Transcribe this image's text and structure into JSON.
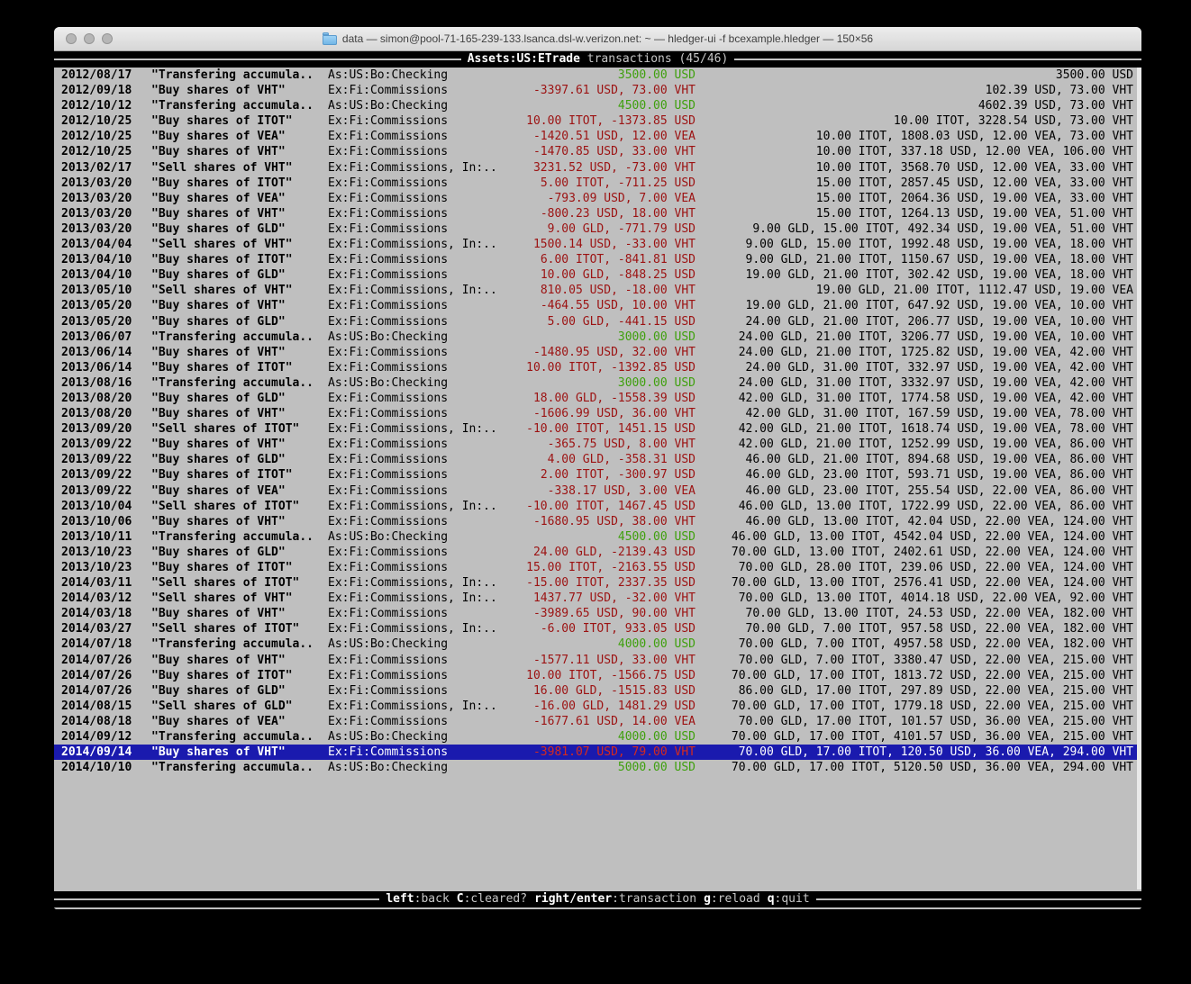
{
  "window": {
    "title": "data — simon@pool-71-165-239-133.lsanca.dsl-w.verizon.net: ~ — hledger-ui -f bcexample.hledger — 150×56"
  },
  "header": {
    "account": "Assets:US:ETrade",
    "rest_label": " transactions (45/46)"
  },
  "footer": {
    "keys": [
      {
        "key": "left",
        "desc": ":back"
      },
      {
        "key": "C",
        "desc": ":cleared?"
      },
      {
        "key": "right/enter",
        "desc": ":transaction"
      },
      {
        "key": "g",
        "desc": ":reload"
      },
      {
        "key": "q",
        "desc": ":quit"
      }
    ]
  },
  "colors": {
    "terminal_bg": "#bfbfbf",
    "bar_bg": "#000000",
    "positive_amount": "#3fa00e",
    "negative_amount": "#9c1212",
    "selection_bg": "#1a1aae",
    "selected_negative_amount": "#d42a1e"
  },
  "transactions": [
    {
      "date": "2012/08/17",
      "description": "\"Transfering accumula..",
      "accounts": "As:US:Bo:Checking",
      "change": "3500.00 USD",
      "positive": true,
      "balance": "3500.00 USD",
      "selected": false
    },
    {
      "date": "2012/09/18",
      "description": "\"Buy shares of VHT\"",
      "accounts": "Ex:Fi:Commissions",
      "change": "-3397.61 USD, 73.00 VHT",
      "positive": false,
      "balance": "102.39 USD, 73.00 VHT",
      "selected": false
    },
    {
      "date": "2012/10/12",
      "description": "\"Transfering accumula..",
      "accounts": "As:US:Bo:Checking",
      "change": "4500.00 USD",
      "positive": true,
      "balance": "4602.39 USD, 73.00 VHT",
      "selected": false
    },
    {
      "date": "2012/10/25",
      "description": "\"Buy shares of ITOT\"",
      "accounts": "Ex:Fi:Commissions",
      "change": "10.00 ITOT, -1373.85 USD",
      "positive": false,
      "balance": "10.00 ITOT, 3228.54 USD, 73.00 VHT",
      "selected": false
    },
    {
      "date": "2012/10/25",
      "description": "\"Buy shares of VEA\"",
      "accounts": "Ex:Fi:Commissions",
      "change": "-1420.51 USD, 12.00 VEA",
      "positive": false,
      "balance": "10.00 ITOT, 1808.03 USD, 12.00 VEA, 73.00 VHT",
      "selected": false
    },
    {
      "date": "2012/10/25",
      "description": "\"Buy shares of VHT\"",
      "accounts": "Ex:Fi:Commissions",
      "change": "-1470.85 USD, 33.00 VHT",
      "positive": false,
      "balance": "10.00 ITOT, 337.18 USD, 12.00 VEA, 106.00 VHT",
      "selected": false
    },
    {
      "date": "2013/02/17",
      "description": "\"Sell shares of VHT\"",
      "accounts": "Ex:Fi:Commissions, In:..",
      "change": "3231.52 USD, -73.00 VHT",
      "positive": false,
      "balance": "10.00 ITOT, 3568.70 USD, 12.00 VEA, 33.00 VHT",
      "selected": false
    },
    {
      "date": "2013/03/20",
      "description": "\"Buy shares of ITOT\"",
      "accounts": "Ex:Fi:Commissions",
      "change": "5.00 ITOT, -711.25 USD",
      "positive": false,
      "balance": "15.00 ITOT, 2857.45 USD, 12.00 VEA, 33.00 VHT",
      "selected": false
    },
    {
      "date": "2013/03/20",
      "description": "\"Buy shares of VEA\"",
      "accounts": "Ex:Fi:Commissions",
      "change": "-793.09 USD, 7.00 VEA",
      "positive": false,
      "balance": "15.00 ITOT, 2064.36 USD, 19.00 VEA, 33.00 VHT",
      "selected": false
    },
    {
      "date": "2013/03/20",
      "description": "\"Buy shares of VHT\"",
      "accounts": "Ex:Fi:Commissions",
      "change": "-800.23 USD, 18.00 VHT",
      "positive": false,
      "balance": "15.00 ITOT, 1264.13 USD, 19.00 VEA, 51.00 VHT",
      "selected": false
    },
    {
      "date": "2013/03/20",
      "description": "\"Buy shares of GLD\"",
      "accounts": "Ex:Fi:Commissions",
      "change": "9.00 GLD, -771.79 USD",
      "positive": false,
      "balance": "9.00 GLD, 15.00 ITOT, 492.34 USD, 19.00 VEA, 51.00 VHT",
      "selected": false
    },
    {
      "date": "2013/04/04",
      "description": "\"Sell shares of VHT\"",
      "accounts": "Ex:Fi:Commissions, In:..",
      "change": "1500.14 USD, -33.00 VHT",
      "positive": false,
      "balance": "9.00 GLD, 15.00 ITOT, 1992.48 USD, 19.00 VEA, 18.00 VHT",
      "selected": false
    },
    {
      "date": "2013/04/10",
      "description": "\"Buy shares of ITOT\"",
      "accounts": "Ex:Fi:Commissions",
      "change": "6.00 ITOT, -841.81 USD",
      "positive": false,
      "balance": "9.00 GLD, 21.00 ITOT, 1150.67 USD, 19.00 VEA, 18.00 VHT",
      "selected": false
    },
    {
      "date": "2013/04/10",
      "description": "\"Buy shares of GLD\"",
      "accounts": "Ex:Fi:Commissions",
      "change": "10.00 GLD, -848.25 USD",
      "positive": false,
      "balance": "19.00 GLD, 21.00 ITOT, 302.42 USD, 19.00 VEA, 18.00 VHT",
      "selected": false
    },
    {
      "date": "2013/05/10",
      "description": "\"Sell shares of VHT\"",
      "accounts": "Ex:Fi:Commissions, In:..",
      "change": "810.05 USD, -18.00 VHT",
      "positive": false,
      "balance": "19.00 GLD, 21.00 ITOT, 1112.47 USD, 19.00 VEA",
      "selected": false
    },
    {
      "date": "2013/05/20",
      "description": "\"Buy shares of VHT\"",
      "accounts": "Ex:Fi:Commissions",
      "change": "-464.55 USD, 10.00 VHT",
      "positive": false,
      "balance": "19.00 GLD, 21.00 ITOT, 647.92 USD, 19.00 VEA, 10.00 VHT",
      "selected": false
    },
    {
      "date": "2013/05/20",
      "description": "\"Buy shares of GLD\"",
      "accounts": "Ex:Fi:Commissions",
      "change": "5.00 GLD, -441.15 USD",
      "positive": false,
      "balance": "24.00 GLD, 21.00 ITOT, 206.77 USD, 19.00 VEA, 10.00 VHT",
      "selected": false
    },
    {
      "date": "2013/06/07",
      "description": "\"Transfering accumula..",
      "accounts": "As:US:Bo:Checking",
      "change": "3000.00 USD",
      "positive": true,
      "balance": "24.00 GLD, 21.00 ITOT, 3206.77 USD, 19.00 VEA, 10.00 VHT",
      "selected": false
    },
    {
      "date": "2013/06/14",
      "description": "\"Buy shares of VHT\"",
      "accounts": "Ex:Fi:Commissions",
      "change": "-1480.95 USD, 32.00 VHT",
      "positive": false,
      "balance": "24.00 GLD, 21.00 ITOT, 1725.82 USD, 19.00 VEA, 42.00 VHT",
      "selected": false
    },
    {
      "date": "2013/06/14",
      "description": "\"Buy shares of ITOT\"",
      "accounts": "Ex:Fi:Commissions",
      "change": "10.00 ITOT, -1392.85 USD",
      "positive": false,
      "balance": "24.00 GLD, 31.00 ITOT, 332.97 USD, 19.00 VEA, 42.00 VHT",
      "selected": false
    },
    {
      "date": "2013/08/16",
      "description": "\"Transfering accumula..",
      "accounts": "As:US:Bo:Checking",
      "change": "3000.00 USD",
      "positive": true,
      "balance": "24.00 GLD, 31.00 ITOT, 3332.97 USD, 19.00 VEA, 42.00 VHT",
      "selected": false
    },
    {
      "date": "2013/08/20",
      "description": "\"Buy shares of GLD\"",
      "accounts": "Ex:Fi:Commissions",
      "change": "18.00 GLD, -1558.39 USD",
      "positive": false,
      "balance": "42.00 GLD, 31.00 ITOT, 1774.58 USD, 19.00 VEA, 42.00 VHT",
      "selected": false
    },
    {
      "date": "2013/08/20",
      "description": "\"Buy shares of VHT\"",
      "accounts": "Ex:Fi:Commissions",
      "change": "-1606.99 USD, 36.00 VHT",
      "positive": false,
      "balance": "42.00 GLD, 31.00 ITOT, 167.59 USD, 19.00 VEA, 78.00 VHT",
      "selected": false
    },
    {
      "date": "2013/09/20",
      "description": "\"Sell shares of ITOT\"",
      "accounts": "Ex:Fi:Commissions, In:..",
      "change": "-10.00 ITOT, 1451.15 USD",
      "positive": false,
      "balance": "42.00 GLD, 21.00 ITOT, 1618.74 USD, 19.00 VEA, 78.00 VHT",
      "selected": false
    },
    {
      "date": "2013/09/22",
      "description": "\"Buy shares of VHT\"",
      "accounts": "Ex:Fi:Commissions",
      "change": "-365.75 USD, 8.00 VHT",
      "positive": false,
      "balance": "42.00 GLD, 21.00 ITOT, 1252.99 USD, 19.00 VEA, 86.00 VHT",
      "selected": false
    },
    {
      "date": "2013/09/22",
      "description": "\"Buy shares of GLD\"",
      "accounts": "Ex:Fi:Commissions",
      "change": "4.00 GLD, -358.31 USD",
      "positive": false,
      "balance": "46.00 GLD, 21.00 ITOT, 894.68 USD, 19.00 VEA, 86.00 VHT",
      "selected": false
    },
    {
      "date": "2013/09/22",
      "description": "\"Buy shares of ITOT\"",
      "accounts": "Ex:Fi:Commissions",
      "change": "2.00 ITOT, -300.97 USD",
      "positive": false,
      "balance": "46.00 GLD, 23.00 ITOT, 593.71 USD, 19.00 VEA, 86.00 VHT",
      "selected": false
    },
    {
      "date": "2013/09/22",
      "description": "\"Buy shares of VEA\"",
      "accounts": "Ex:Fi:Commissions",
      "change": "-338.17 USD, 3.00 VEA",
      "positive": false,
      "balance": "46.00 GLD, 23.00 ITOT, 255.54 USD, 22.00 VEA, 86.00 VHT",
      "selected": false
    },
    {
      "date": "2013/10/04",
      "description": "\"Sell shares of ITOT\"",
      "accounts": "Ex:Fi:Commissions, In:..",
      "change": "-10.00 ITOT, 1467.45 USD",
      "positive": false,
      "balance": "46.00 GLD, 13.00 ITOT, 1722.99 USD, 22.00 VEA, 86.00 VHT",
      "selected": false
    },
    {
      "date": "2013/10/06",
      "description": "\"Buy shares of VHT\"",
      "accounts": "Ex:Fi:Commissions",
      "change": "-1680.95 USD, 38.00 VHT",
      "positive": false,
      "balance": "46.00 GLD, 13.00 ITOT, 42.04 USD, 22.00 VEA, 124.00 VHT",
      "selected": false
    },
    {
      "date": "2013/10/11",
      "description": "\"Transfering accumula..",
      "accounts": "As:US:Bo:Checking",
      "change": "4500.00 USD",
      "positive": true,
      "balance": "46.00 GLD, 13.00 ITOT, 4542.04 USD, 22.00 VEA, 124.00 VHT",
      "selected": false
    },
    {
      "date": "2013/10/23",
      "description": "\"Buy shares of GLD\"",
      "accounts": "Ex:Fi:Commissions",
      "change": "24.00 GLD, -2139.43 USD",
      "positive": false,
      "balance": "70.00 GLD, 13.00 ITOT, 2402.61 USD, 22.00 VEA, 124.00 VHT",
      "selected": false
    },
    {
      "date": "2013/10/23",
      "description": "\"Buy shares of ITOT\"",
      "accounts": "Ex:Fi:Commissions",
      "change": "15.00 ITOT, -2163.55 USD",
      "positive": false,
      "balance": "70.00 GLD, 28.00 ITOT, 239.06 USD, 22.00 VEA, 124.00 VHT",
      "selected": false
    },
    {
      "date": "2014/03/11",
      "description": "\"Sell shares of ITOT\"",
      "accounts": "Ex:Fi:Commissions, In:..",
      "change": "-15.00 ITOT, 2337.35 USD",
      "positive": false,
      "balance": "70.00 GLD, 13.00 ITOT, 2576.41 USD, 22.00 VEA, 124.00 VHT",
      "selected": false
    },
    {
      "date": "2014/03/12",
      "description": "\"Sell shares of VHT\"",
      "accounts": "Ex:Fi:Commissions, In:..",
      "change": "1437.77 USD, -32.00 VHT",
      "positive": false,
      "balance": "70.00 GLD, 13.00 ITOT, 4014.18 USD, 22.00 VEA, 92.00 VHT",
      "selected": false
    },
    {
      "date": "2014/03/18",
      "description": "\"Buy shares of VHT\"",
      "accounts": "Ex:Fi:Commissions",
      "change": "-3989.65 USD, 90.00 VHT",
      "positive": false,
      "balance": "70.00 GLD, 13.00 ITOT, 24.53 USD, 22.00 VEA, 182.00 VHT",
      "selected": false
    },
    {
      "date": "2014/03/27",
      "description": "\"Sell shares of ITOT\"",
      "accounts": "Ex:Fi:Commissions, In:..",
      "change": "-6.00 ITOT, 933.05 USD",
      "positive": false,
      "balance": "70.00 GLD, 7.00 ITOT, 957.58 USD, 22.00 VEA, 182.00 VHT",
      "selected": false
    },
    {
      "date": "2014/07/18",
      "description": "\"Transfering accumula..",
      "accounts": "As:US:Bo:Checking",
      "change": "4000.00 USD",
      "positive": true,
      "balance": "70.00 GLD, 7.00 ITOT, 4957.58 USD, 22.00 VEA, 182.00 VHT",
      "selected": false
    },
    {
      "date": "2014/07/26",
      "description": "\"Buy shares of VHT\"",
      "accounts": "Ex:Fi:Commissions",
      "change": "-1577.11 USD, 33.00 VHT",
      "positive": false,
      "balance": "70.00 GLD, 7.00 ITOT, 3380.47 USD, 22.00 VEA, 215.00 VHT",
      "selected": false
    },
    {
      "date": "2014/07/26",
      "description": "\"Buy shares of ITOT\"",
      "accounts": "Ex:Fi:Commissions",
      "change": "10.00 ITOT, -1566.75 USD",
      "positive": false,
      "balance": "70.00 GLD, 17.00 ITOT, 1813.72 USD, 22.00 VEA, 215.00 VHT",
      "selected": false
    },
    {
      "date": "2014/07/26",
      "description": "\"Buy shares of GLD\"",
      "accounts": "Ex:Fi:Commissions",
      "change": "16.00 GLD, -1515.83 USD",
      "positive": false,
      "balance": "86.00 GLD, 17.00 ITOT, 297.89 USD, 22.00 VEA, 215.00 VHT",
      "selected": false
    },
    {
      "date": "2014/08/15",
      "description": "\"Sell shares of GLD\"",
      "accounts": "Ex:Fi:Commissions, In:..",
      "change": "-16.00 GLD, 1481.29 USD",
      "positive": false,
      "balance": "70.00 GLD, 17.00 ITOT, 1779.18 USD, 22.00 VEA, 215.00 VHT",
      "selected": false
    },
    {
      "date": "2014/08/18",
      "description": "\"Buy shares of VEA\"",
      "accounts": "Ex:Fi:Commissions",
      "change": "-1677.61 USD, 14.00 VEA",
      "positive": false,
      "balance": "70.00 GLD, 17.00 ITOT, 101.57 USD, 36.00 VEA, 215.00 VHT",
      "selected": false
    },
    {
      "date": "2014/09/12",
      "description": "\"Transfering accumula..",
      "accounts": "As:US:Bo:Checking",
      "change": "4000.00 USD",
      "positive": true,
      "balance": "70.00 GLD, 17.00 ITOT, 4101.57 USD, 36.00 VEA, 215.00 VHT",
      "selected": false
    },
    {
      "date": "2014/09/14",
      "description": "\"Buy shares of VHT\"",
      "accounts": "Ex:Fi:Commissions",
      "change": "-3981.07 USD, 79.00 VHT",
      "positive": false,
      "balance": "70.00 GLD, 17.00 ITOT, 120.50 USD, 36.00 VEA, 294.00 VHT",
      "selected": true
    },
    {
      "date": "2014/10/10",
      "description": "\"Transfering accumula..",
      "accounts": "As:US:Bo:Checking",
      "change": "5000.00 USD",
      "positive": true,
      "balance": "70.00 GLD, 17.00 ITOT, 5120.50 USD, 36.00 VEA, 294.00 VHT",
      "selected": false
    }
  ]
}
